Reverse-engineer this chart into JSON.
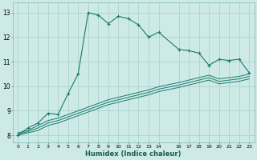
{
  "xlabel": "Humidex (Indice chaleur)",
  "bg_color": "#ceeae7",
  "line_color": "#1a7a6e",
  "grid_color": "#aad4cf",
  "xlim": [
    -0.5,
    23.5
  ],
  "ylim": [
    7.7,
    13.4
  ],
  "xticks": [
    0,
    1,
    2,
    3,
    4,
    5,
    6,
    7,
    8,
    9,
    10,
    11,
    12,
    13,
    14,
    16,
    17,
    18,
    19,
    20,
    21,
    22,
    23
  ],
  "yticks": [
    8,
    9,
    10,
    11,
    12,
    13
  ],
  "main_x": [
    0,
    1,
    2,
    3,
    4,
    5,
    6,
    7,
    8,
    9,
    10,
    11,
    12,
    13,
    14,
    16,
    17,
    18,
    19,
    20,
    21,
    22,
    23
  ],
  "main_y": [
    8.0,
    8.3,
    8.5,
    8.9,
    8.85,
    9.7,
    10.5,
    13.0,
    12.9,
    12.55,
    12.85,
    12.75,
    12.5,
    12.0,
    12.2,
    11.5,
    11.45,
    11.35,
    10.85,
    11.1,
    11.05,
    11.1,
    10.55
  ],
  "line2_x": [
    0,
    1,
    2,
    3,
    4,
    5,
    6,
    7,
    8,
    9,
    10,
    11,
    12,
    13,
    14,
    16,
    17,
    18,
    19,
    20,
    21,
    22,
    23
  ],
  "line2_y": [
    8.1,
    8.2,
    8.4,
    8.6,
    8.7,
    8.85,
    9.0,
    9.15,
    9.3,
    9.45,
    9.55,
    9.65,
    9.75,
    9.85,
    9.98,
    10.15,
    10.25,
    10.35,
    10.45,
    10.3,
    10.35,
    10.4,
    10.5
  ],
  "line3_x": [
    0,
    1,
    2,
    3,
    4,
    5,
    6,
    7,
    8,
    9,
    10,
    11,
    12,
    13,
    14,
    16,
    17,
    18,
    19,
    20,
    21,
    22,
    23
  ],
  "line3_y": [
    8.05,
    8.15,
    8.3,
    8.5,
    8.6,
    8.75,
    8.9,
    9.05,
    9.2,
    9.35,
    9.45,
    9.55,
    9.65,
    9.75,
    9.88,
    10.05,
    10.15,
    10.25,
    10.35,
    10.2,
    10.25,
    10.3,
    10.4
  ],
  "line4_x": [
    0,
    1,
    2,
    3,
    4,
    5,
    6,
    7,
    8,
    9,
    10,
    11,
    12,
    13,
    14,
    16,
    17,
    18,
    19,
    20,
    21,
    22,
    23
  ],
  "line4_y": [
    8.0,
    8.1,
    8.2,
    8.4,
    8.5,
    8.65,
    8.8,
    8.95,
    9.1,
    9.25,
    9.35,
    9.45,
    9.55,
    9.65,
    9.78,
    9.95,
    10.05,
    10.15,
    10.25,
    10.1,
    10.15,
    10.2,
    10.3
  ]
}
